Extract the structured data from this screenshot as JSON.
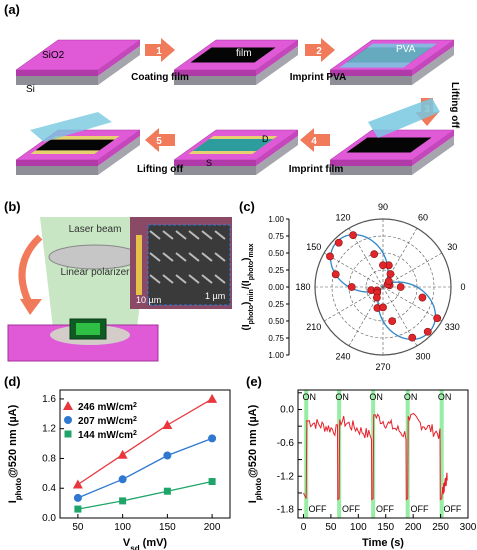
{
  "panel_a": {
    "label": "(a)",
    "substrate_top": "SiO2",
    "substrate_bottom": "Si",
    "blocks": [
      {
        "name": "block-substrate"
      },
      {
        "name": "block-film",
        "text": "film"
      },
      {
        "name": "block-pva",
        "text": "PVA"
      },
      {
        "name": "block-lifted"
      },
      {
        "name": "block-imprinted",
        "text_s": "S",
        "text_d": "D"
      },
      {
        "name": "block-final"
      }
    ],
    "steps": [
      {
        "num": "1",
        "text": "Coating film"
      },
      {
        "num": "2",
        "text": "Imprint PVA"
      },
      {
        "num": "3",
        "text": "Lifting off"
      },
      {
        "num": "4",
        "text": "Imprint film"
      },
      {
        "num": "5",
        "text": "Lifting off"
      }
    ]
  },
  "panel_b": {
    "label": "(b)",
    "laser": "Laser beam",
    "polarizer": "Linear polarizer",
    "scale_left": "10 µm",
    "scale_right": "1 µm"
  },
  "chart_c": {
    "label": "(c)",
    "type": "polar",
    "rlabel_main": "(I",
    "rlabel_sub1": "photo",
    "rlabel_mid": ")",
    "rlabel_sub2": "min",
    "rlabel_mid2": "/(I",
    "rlabel_sub3": "photo",
    "rlabel_end": ")",
    "rlabel_sub4": "max",
    "r_ticks_upper": [
      "1.00",
      "0.75",
      "0.50",
      "0.25",
      "0.00"
    ],
    "r_ticks_lower": [
      "0.25",
      "0.50",
      "0.75",
      "1.00"
    ],
    "angle_ticks": [
      {
        "deg": 0,
        "text": "0"
      },
      {
        "deg": 30,
        "text": "30"
      },
      {
        "deg": 60,
        "text": "60"
      },
      {
        "deg": 90,
        "text": "90"
      },
      {
        "deg": 120,
        "text": "120"
      },
      {
        "deg": 150,
        "text": "150"
      },
      {
        "deg": 180,
        "text": "180"
      },
      {
        "deg": 210,
        "text": "210"
      },
      {
        "deg": 240,
        "text": "240"
      },
      {
        "deg": 270,
        "text": "270"
      },
      {
        "deg": 300,
        "text": "300"
      },
      {
        "deg": 330,
        "text": "330"
      }
    ],
    "points": [
      {
        "theta": 0,
        "r": 0.26
      },
      {
        "theta": 15,
        "r": 0.1
      },
      {
        "theta": 30,
        "r": 0.08
      },
      {
        "theta": 45,
        "r": 0.12
      },
      {
        "theta": 60,
        "r": 0.22
      },
      {
        "theta": 75,
        "r": 0.33
      },
      {
        "theta": 90,
        "r": 0.32
      },
      {
        "theta": 105,
        "r": 0.5
      },
      {
        "theta": 120,
        "r": 0.88
      },
      {
        "theta": 135,
        "r": 0.92
      },
      {
        "theta": 150,
        "r": 0.9
      },
      {
        "theta": 165,
        "r": 0.72
      },
      {
        "theta": 180,
        "r": 0.46
      },
      {
        "theta": 195,
        "r": 0.18
      },
      {
        "theta": 210,
        "r": 0.1
      },
      {
        "theta": 225,
        "r": 0.12
      },
      {
        "theta": 240,
        "r": 0.18
      },
      {
        "theta": 255,
        "r": 0.32
      },
      {
        "theta": 270,
        "r": 0.3
      },
      {
        "theta": 285,
        "r": 0.52
      },
      {
        "theta": 300,
        "r": 0.86
      },
      {
        "theta": 315,
        "r": 0.93
      },
      {
        "theta": 330,
        "r": 0.92
      },
      {
        "theta": 345,
        "r": 0.6
      }
    ]
  },
  "chart_d": {
    "label": "(d)",
    "type": "line",
    "ylabel_main": "I",
    "ylabel_sub": "photo",
    "ylabel_rest": "@520 nm (µA)",
    "xlabel_main": "V",
    "xlabel_sub": "sd",
    "xlabel_rest": " (mV)",
    "x": [
      50,
      100,
      150,
      200
    ],
    "xticks": [
      50,
      100,
      150,
      200
    ],
    "yticks": [
      0.0,
      0.4,
      0.8,
      1.2,
      1.6
    ],
    "xlim": [
      30,
      220
    ],
    "ylim": [
      0.0,
      1.72
    ],
    "series": [
      {
        "name": "246 mW/cm",
        "sup": "2",
        "color": "#e8383d",
        "marker": "triangle",
        "values": [
          0.45,
          0.85,
          1.25,
          1.6
        ]
      },
      {
        "name": "207 mW/cm",
        "sup": "2",
        "color": "#2f78d2",
        "marker": "circle",
        "values": [
          0.27,
          0.52,
          0.84,
          1.07
        ]
      },
      {
        "name": "144 mW/cm",
        "sup": "2",
        "color": "#1fa56a",
        "marker": "square",
        "values": [
          0.12,
          0.23,
          0.36,
          0.49
        ]
      }
    ]
  },
  "chart_e": {
    "label": "(e)",
    "type": "line",
    "ylabel_main": "I",
    "ylabel_sub": "photo",
    "ylabel_rest": "@520 nm (µA)",
    "xlabel": "Time (s)",
    "xticks": [
      0,
      50,
      100,
      150,
      200,
      250,
      300
    ],
    "yticks": [
      0.3,
      0.0,
      -0.3,
      -0.6,
      -0.9,
      -1.2,
      -1.5,
      -1.8
    ],
    "xlim": [
      -10,
      300
    ],
    "ylim": [
      -1.95,
      0.35
    ],
    "line_color": "#e8202a",
    "band_color": "#7ee88e",
    "on_times": [
      5,
      65,
      127,
      190,
      252
    ],
    "on_label": "ON",
    "off_times": [
      22,
      83,
      145,
      208,
      268
    ],
    "off_label": "OFF",
    "cycles": [
      {
        "t_on": 5,
        "t_off": 62,
        "start": -0.2,
        "end": -0.38
      },
      {
        "t_on": 65,
        "t_off": 124,
        "start": -0.18,
        "end": -0.48
      },
      {
        "t_on": 127,
        "t_off": 187,
        "start": -0.1,
        "end": -0.46
      },
      {
        "t_on": 190,
        "t_off": 249,
        "start": -0.12,
        "end": -0.45
      },
      {
        "t_on": 252,
        "t_off": 262,
        "start": -1.5,
        "end": -1.2
      }
    ]
  }
}
